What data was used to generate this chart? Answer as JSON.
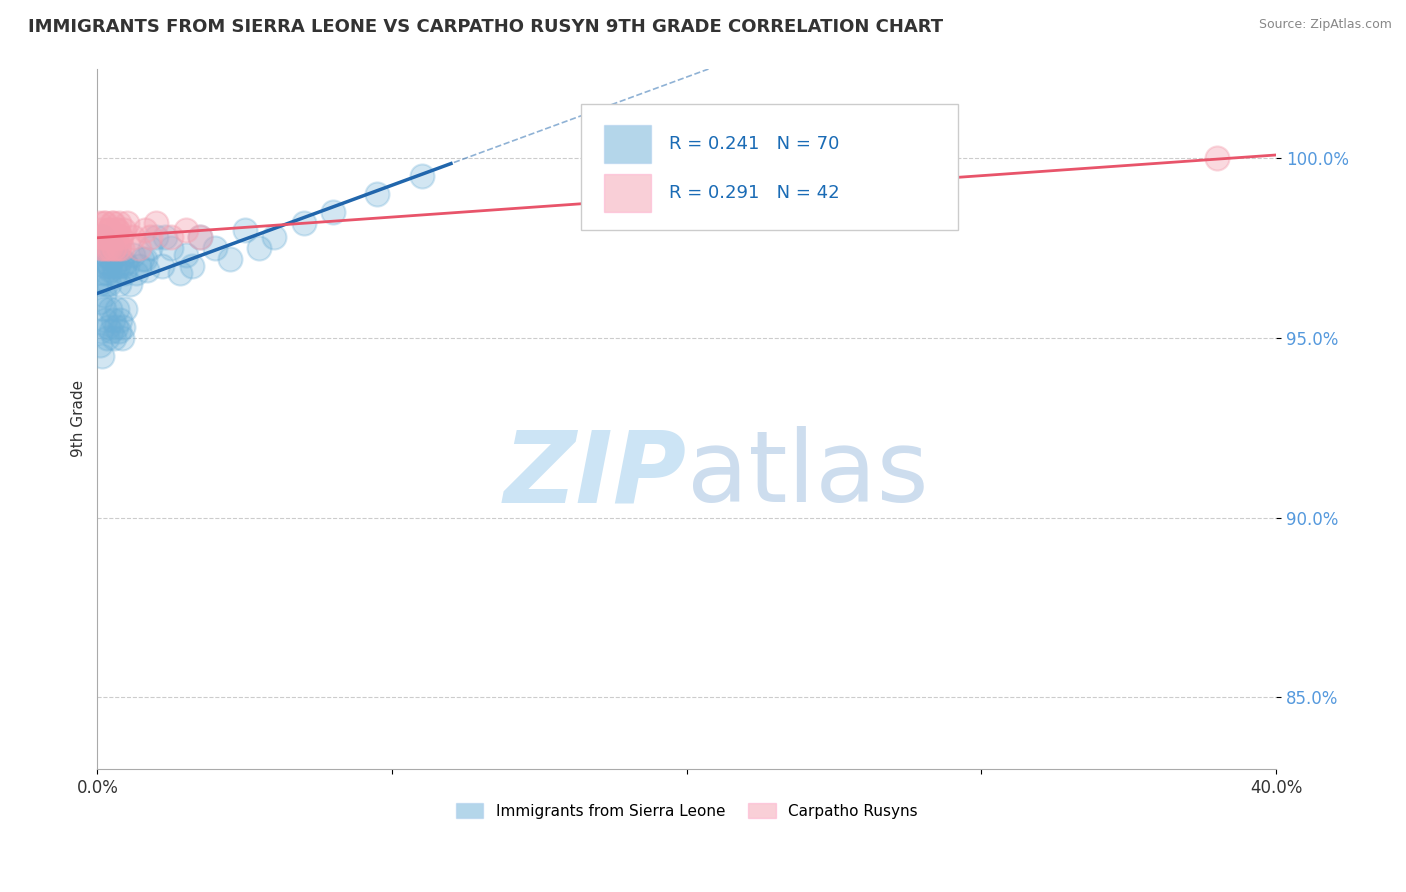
{
  "title": "IMMIGRANTS FROM SIERRA LEONE VS CARPATHO RUSYN 9TH GRADE CORRELATION CHART",
  "source_text": "Source: ZipAtlas.com",
  "ylabel": "9th Grade",
  "xlim": [
    0.0,
    40.0
  ],
  "ylim": [
    83.0,
    102.5
  ],
  "yticks": [
    85.0,
    90.0,
    95.0,
    100.0
  ],
  "ytick_labels": [
    "85.0%",
    "90.0%",
    "95.0%",
    "100.0%"
  ],
  "legend_blue_label": "Immigrants from Sierra Leone",
  "legend_pink_label": "Carpatho Rusyns",
  "R_blue": 0.241,
  "N_blue": 70,
  "R_pink": 0.291,
  "N_pink": 42,
  "blue_color": "#6baed6",
  "pink_color": "#f4a0b0",
  "blue_line_color": "#2166ac",
  "pink_line_color": "#e8546a",
  "watermark_color": "#cce4f5",
  "title_fontsize": 13,
  "blue_scatter_x": [
    0.05,
    0.1,
    0.12,
    0.15,
    0.18,
    0.2,
    0.22,
    0.25,
    0.28,
    0.3,
    0.32,
    0.35,
    0.38,
    0.4,
    0.42,
    0.45,
    0.5,
    0.55,
    0.6,
    0.65,
    0.7,
    0.75,
    0.8,
    0.85,
    0.9,
    0.95,
    1.0,
    1.1,
    1.2,
    1.3,
    1.5,
    1.7,
    1.8,
    2.0,
    2.2,
    2.5,
    2.8,
    3.0,
    3.2,
    3.5,
    4.0,
    4.5,
    5.0,
    5.5,
    6.0,
    7.0,
    8.0,
    9.5,
    11.0,
    0.08,
    0.13,
    0.17,
    0.23,
    0.27,
    0.33,
    0.37,
    0.43,
    0.47,
    0.53,
    0.57,
    0.63,
    0.67,
    0.73,
    0.77,
    0.83,
    0.87,
    0.93,
    1.4,
    1.6,
    2.3
  ],
  "blue_scatter_y": [
    96.5,
    96.0,
    97.2,
    97.8,
    96.8,
    97.5,
    96.2,
    97.0,
    96.5,
    97.3,
    96.8,
    97.1,
    96.5,
    97.0,
    96.9,
    97.2,
    97.5,
    97.0,
    96.8,
    97.3,
    97.0,
    96.5,
    97.2,
    97.0,
    96.8,
    97.1,
    97.0,
    96.5,
    97.3,
    96.8,
    97.2,
    96.9,
    97.5,
    97.8,
    97.0,
    97.5,
    96.8,
    97.3,
    97.0,
    97.8,
    97.5,
    97.2,
    98.0,
    97.5,
    97.8,
    98.2,
    98.5,
    99.0,
    99.5,
    94.8,
    95.2,
    94.5,
    95.8,
    95.5,
    95.0,
    95.3,
    95.8,
    95.2,
    95.5,
    95.0,
    95.3,
    95.8,
    95.2,
    95.5,
    95.0,
    95.3,
    95.8,
    97.0,
    97.2,
    97.8
  ],
  "pink_scatter_x": [
    0.05,
    0.1,
    0.15,
    0.2,
    0.25,
    0.3,
    0.35,
    0.4,
    0.45,
    0.5,
    0.55,
    0.6,
    0.65,
    0.7,
    0.75,
    0.8,
    0.9,
    1.0,
    1.2,
    1.4,
    1.6,
    1.8,
    2.0,
    2.5,
    3.0,
    3.5,
    0.12,
    0.18,
    0.22,
    0.28,
    0.32,
    0.38,
    0.42,
    0.48,
    0.52,
    0.58,
    0.62,
    0.68,
    0.72,
    0.78,
    0.85,
    38.0
  ],
  "pink_scatter_y": [
    98.2,
    98.0,
    97.8,
    97.5,
    98.2,
    97.8,
    97.5,
    98.0,
    97.8,
    98.2,
    97.5,
    97.8,
    98.0,
    97.5,
    98.2,
    97.8,
    98.0,
    98.2,
    97.8,
    97.5,
    98.0,
    97.8,
    98.2,
    97.8,
    98.0,
    97.8,
    97.5,
    97.8,
    98.2,
    97.5,
    97.8,
    98.0,
    97.5,
    97.8,
    98.2,
    97.5,
    97.8,
    98.0,
    97.5,
    97.8,
    97.5,
    100.0
  ]
}
